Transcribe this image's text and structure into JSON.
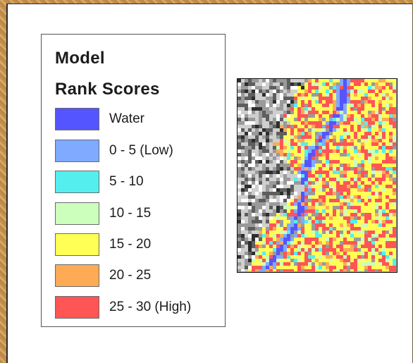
{
  "legend": {
    "title": "Model",
    "subtitle": "Rank Scores",
    "items": [
      {
        "label": "Water",
        "color": "#5555ff"
      },
      {
        "label": "0 - 5 (Low)",
        "color": "#7faaff"
      },
      {
        "label": "5 - 10",
        "color": "#55eeee"
      },
      {
        "label": "10 - 15",
        "color": "#ccffbb"
      },
      {
        "label": "15 - 20",
        "color": "#ffff55"
      },
      {
        "label": "20 - 25",
        "color": "#ffaa55"
      },
      {
        "label": "25 - 30 (High)",
        "color": "#ff5555"
      }
    ]
  },
  "map": {
    "terrain_colors": [
      "#ffffff",
      "#cfcfcf",
      "#9a9a9a",
      "#5e5e5e",
      "#2e2e2e"
    ]
  }
}
